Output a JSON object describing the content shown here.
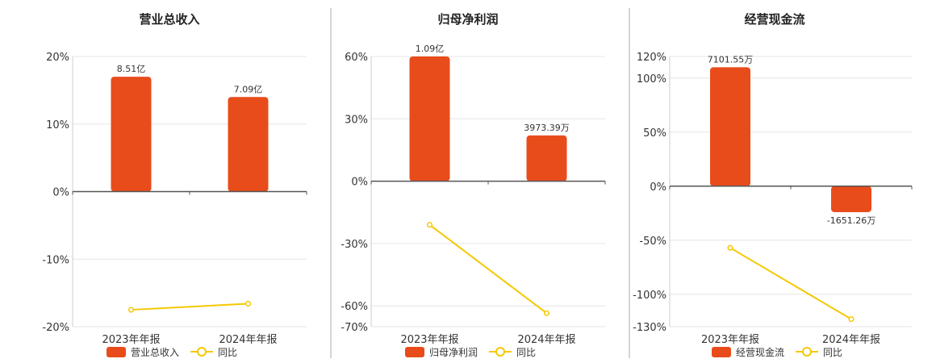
{
  "colors": {
    "bar": "#e84c1b",
    "line": "#f5c800",
    "grid": "#e6e6e6",
    "axis": "#555555",
    "divider": "#aaaaaa"
  },
  "chart_data": [
    {
      "type": "bar",
      "title": "营业总收入",
      "categories": [
        "2023年年报",
        "2024年年报"
      ],
      "bar_labels": [
        "8.51亿",
        "7.09亿"
      ],
      "ylim": [
        -20,
        20
      ],
      "yticks": [
        20,
        10,
        0,
        -10,
        -20
      ],
      "ytick_labels": [
        "20%",
        "10%",
        "0%",
        "-10%",
        "-20%"
      ],
      "bar_values_pct": [
        17,
        14
      ],
      "line_values": [
        -17.5,
        -16.6
      ],
      "legend": [
        "营业总收入",
        "同比"
      ],
      "grid": true,
      "legend_position": "bottom"
    },
    {
      "type": "bar",
      "title": "归母净利润",
      "categories": [
        "2023年年报",
        "2024年年报"
      ],
      "bar_labels": [
        "1.09亿",
        "3973.39万"
      ],
      "ylim": [
        -70,
        60
      ],
      "yticks": [
        60,
        30,
        0,
        -30,
        -60,
        -70
      ],
      "ytick_labels": [
        "60%",
        "30%",
        "0%",
        "-30%",
        "-60%",
        "-70%"
      ],
      "bar_values_pct": [
        60,
        22
      ],
      "line_values": [
        -21,
        -63.5
      ],
      "legend": [
        "归母净利润",
        "同比"
      ],
      "grid": true,
      "legend_position": "bottom"
    },
    {
      "type": "bar",
      "title": "经营现金流",
      "categories": [
        "2023年年报",
        "2024年年报"
      ],
      "bar_labels": [
        "7101.55万",
        "-1651.26万"
      ],
      "ylim": [
        -130,
        120
      ],
      "yticks": [
        120,
        100,
        50,
        0,
        -50,
        -100,
        -130
      ],
      "ytick_labels": [
        "120%",
        "100%",
        "50%",
        "0%",
        "-50%",
        "-100%",
        "-130%"
      ],
      "bar_values_pct": [
        110,
        -24
      ],
      "line_values": [
        -57,
        -123
      ],
      "legend": [
        "经营现金流",
        "同比"
      ],
      "grid": true,
      "legend_position": "bottom"
    }
  ]
}
